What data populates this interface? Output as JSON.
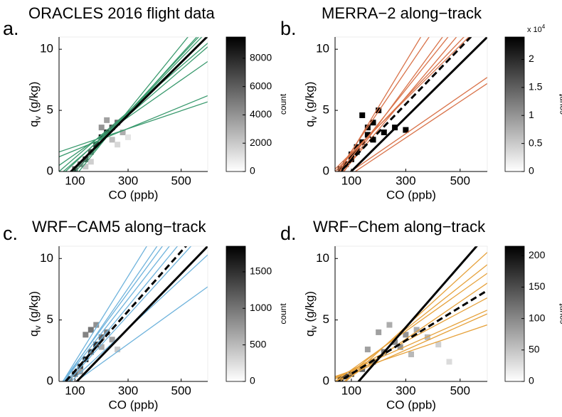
{
  "chart_data": [
    {
      "type": "heatmap",
      "panel_label": "a.",
      "title": "ORACLES 2016 flight data",
      "xlabel": "CO (ppb)",
      "ylabel": {
        "text": "q",
        "subscript": "v",
        "unit": "(g/kg)"
      },
      "xlim": [
        40,
        600
      ],
      "ylim": [
        0,
        11
      ],
      "xticks": [
        100,
        300,
        500
      ],
      "yticks": [
        0,
        5,
        10
      ],
      "cells": {
        "x": [
          100,
          120,
          140,
          160,
          180,
          200,
          220,
          240,
          260,
          280,
          200,
          220,
          240,
          260,
          140,
          160,
          300
        ],
        "y": [
          0.2,
          0.6,
          1.0,
          1.6,
          2.2,
          2.8,
          3.2,
          3.6,
          4.0,
          3.2,
          3.6,
          4.2,
          2.6,
          2.2,
          0.4,
          0.8,
          2.8
        ],
        "count": [
          6000,
          5000,
          7000,
          6500,
          8000,
          9000,
          8500,
          7000,
          5500,
          3000,
          4000,
          3500,
          2500,
          1500,
          2000,
          1800,
          1000
        ]
      },
      "x": [
        40,
        600
      ],
      "lines": [
        {
          "color": "#3a9a6e",
          "style": "solid",
          "values": [
            -1,
            11.5
          ]
        },
        {
          "color": "#3a9a6e",
          "style": "solid",
          "values": [
            -0.5,
            11
          ]
        },
        {
          "color": "#3a9a6e",
          "style": "solid",
          "values": [
            -1.5,
            12
          ]
        },
        {
          "color": "#3a9a6e",
          "style": "solid",
          "values": [
            0,
            10.5
          ]
        },
        {
          "color": "#3a9a6e",
          "style": "solid",
          "values": [
            -0.3,
            10.2
          ]
        },
        {
          "color": "#3a9a6e",
          "style": "solid",
          "values": [
            0.5,
            9
          ]
        },
        {
          "color": "#3a9a6e",
          "style": "solid",
          "values": [
            1.2,
            6.2
          ]
        },
        {
          "color": "#3a9a6e",
          "style": "solid",
          "values": [
            1.6,
            5.7
          ]
        },
        {
          "color": "#3a9a6e",
          "style": "solid",
          "values": [
            -2,
            13
          ]
        },
        {
          "color": "#3a9a6e",
          "style": "solid",
          "values": [
            -1.2,
            11.8
          ]
        },
        {
          "color": "#000000",
          "style": "solid",
          "values": [
            -0.97,
            11.07
          ]
        }
      ],
      "colorbar": {
        "label": "count",
        "lim": [
          0,
          9500
        ],
        "ticks": [
          0,
          2000,
          4000,
          6000,
          8000
        ]
      }
    },
    {
      "type": "heatmap",
      "panel_label": "b.",
      "title": "MERRA−2 along−track",
      "xlabel": "CO (ppb)",
      "ylabel": {
        "text": "q",
        "subscript": "v",
        "unit": "(g/kg)"
      },
      "xlim": [
        40,
        600
      ],
      "ylim": [
        0,
        11
      ],
      "xticks": [
        100,
        300,
        500
      ],
      "yticks": [
        0,
        5,
        10
      ],
      "cells": {
        "x": [
          60,
          80,
          100,
          120,
          140,
          160,
          180,
          200,
          140,
          160,
          120,
          180,
          220,
          260,
          300,
          100
        ],
        "y": [
          0.2,
          0.6,
          1.0,
          1.6,
          2.4,
          3.0,
          4.0,
          5.0,
          4.6,
          3.6,
          2.0,
          2.6,
          3.2,
          3.6,
          3.4,
          1.4
        ],
        "count": [
          22000,
          15000,
          9000,
          8000,
          7000,
          6000,
          5000,
          4000,
          6500,
          5500,
          4000,
          3000,
          2500,
          2000,
          1500,
          3500
        ]
      },
      "x": [
        40,
        600
      ],
      "lines": [
        {
          "color": "#d9734a",
          "style": "solid",
          "values": [
            -0.5,
            15
          ]
        },
        {
          "color": "#d9734a",
          "style": "solid",
          "values": [
            -0.3,
            18
          ]
        },
        {
          "color": "#d9734a",
          "style": "solid",
          "values": [
            -0.8,
            14
          ]
        },
        {
          "color": "#d9734a",
          "style": "solid",
          "values": [
            0,
            13
          ]
        },
        {
          "color": "#d9734a",
          "style": "solid",
          "values": [
            -1,
            16
          ]
        },
        {
          "color": "#d9734a",
          "style": "solid",
          "values": [
            -0.6,
            20
          ]
        },
        {
          "color": "#d9734a",
          "style": "solid",
          "values": [
            0.2,
            12.5
          ]
        },
        {
          "color": "#d9734a",
          "style": "solid",
          "values": [
            -0.9,
            7.7
          ]
        },
        {
          "color": "#d9734a",
          "style": "solid",
          "values": [
            -1.1,
            7.2
          ]
        },
        {
          "color": "#000000",
          "style": "solid",
          "values": [
            -1.3,
            11
          ]
        },
        {
          "color": "#000000",
          "style": "dashed",
          "values": [
            -0.46,
            12.4
          ]
        }
      ],
      "colorbar": {
        "label": "count",
        "lim": [
          0,
          2.4
        ],
        "ticks": [
          0,
          0.5,
          1,
          1.5,
          2
        ],
        "multiplier": {
          "text": "x 10",
          "exponent": "4"
        }
      }
    },
    {
      "type": "heatmap",
      "panel_label": "c.",
      "title": "WRF−CAM5 along−track",
      "xlabel": "CO (ppb)",
      "ylabel": {
        "text": "q",
        "subscript": "v",
        "unit": "(g/kg)"
      },
      "xlim": [
        40,
        600
      ],
      "ylim": [
        0,
        11
      ],
      "xticks": [
        100,
        300,
        500
      ],
      "yticks": [
        0,
        5,
        10
      ],
      "cells": {
        "x": [
          80,
          100,
          120,
          140,
          160,
          180,
          200,
          220,
          240,
          160,
          180,
          200,
          140,
          120,
          260
        ],
        "y": [
          0.2,
          0.6,
          1.2,
          1.8,
          2.4,
          3.0,
          3.6,
          4.0,
          3.4,
          4.2,
          4.6,
          2.8,
          3.8,
          0.8,
          2.6
        ],
        "count": [
          900,
          1200,
          1400,
          1600,
          1300,
          1500,
          1100,
          900,
          700,
          1000,
          800,
          600,
          900,
          700,
          400
        ]
      },
      "x": [
        40,
        600
      ],
      "lines": [
        {
          "color": "#6fb3dc",
          "style": "solid",
          "values": [
            -0.5,
            19
          ]
        },
        {
          "color": "#6fb3dc",
          "style": "solid",
          "values": [
            -0.6,
            17
          ]
        },
        {
          "color": "#6fb3dc",
          "style": "solid",
          "values": [
            -0.4,
            16
          ]
        },
        {
          "color": "#6fb3dc",
          "style": "solid",
          "values": [
            -0.7,
            14
          ]
        },
        {
          "color": "#6fb3dc",
          "style": "solid",
          "values": [
            -0.8,
            12.5
          ]
        },
        {
          "color": "#6fb3dc",
          "style": "solid",
          "values": [
            -0.9,
            10.3
          ]
        },
        {
          "color": "#6fb3dc",
          "style": "solid",
          "values": [
            -1,
            7.7
          ]
        },
        {
          "color": "#6fb3dc",
          "style": "solid",
          "values": [
            -0.5,
            15
          ]
        },
        {
          "color": "#000000",
          "style": "solid",
          "values": [
            -1.5,
            11
          ]
        },
        {
          "color": "#000000",
          "style": "dashed",
          "values": [
            -0.6,
            13
          ]
        }
      ],
      "colorbar": {
        "label": "count",
        "lim": [
          0,
          1850
        ],
        "ticks": [
          0,
          500,
          1000,
          1500
        ]
      }
    },
    {
      "type": "heatmap",
      "panel_label": "d.",
      "title": "WRF−Chem along−track",
      "xlabel": "CO (ppb)",
      "ylabel": {
        "text": "q",
        "subscript": "v",
        "unit": "(g/kg)"
      },
      "xlim": [
        40,
        600
      ],
      "ylim": [
        0,
        11
      ],
      "xticks": [
        100,
        300,
        500
      ],
      "yticks": [
        0,
        5,
        10
      ],
      "cells": {
        "x": [
          60,
          80,
          100,
          140,
          180,
          220,
          260,
          300,
          340,
          380,
          200,
          240,
          280,
          320,
          160,
          420,
          460
        ],
        "y": [
          0.2,
          0.4,
          0.6,
          1.0,
          1.6,
          2.4,
          3.2,
          3.8,
          4.2,
          3.6,
          4.0,
          4.6,
          2.8,
          2.2,
          2.6,
          3.0,
          1.6
        ],
        "count": [
          180,
          160,
          150,
          130,
          120,
          110,
          100,
          90,
          70,
          60,
          80,
          70,
          90,
          60,
          80,
          40,
          30
        ]
      },
      "x": [
        40,
        600
      ],
      "lines": [
        {
          "color": "#e6a23c",
          "style": "solid",
          "values": [
            -0.3,
            9.5
          ]
        },
        {
          "color": "#e6a23c",
          "style": "solid",
          "values": [
            0,
            8.8
          ]
        },
        {
          "color": "#e6a23c",
          "style": "solid",
          "values": [
            -0.5,
            8
          ]
        },
        {
          "color": "#e6a23c",
          "style": "solid",
          "values": [
            0.2,
            6.8
          ]
        },
        {
          "color": "#e6a23c",
          "style": "solid",
          "values": [
            0.3,
            5.8
          ]
        },
        {
          "color": "#e6a23c",
          "style": "solid",
          "values": [
            0.4,
            4.6
          ]
        },
        {
          "color": "#e6a23c",
          "style": "solid",
          "values": [
            -0.8,
            10.5
          ]
        },
        {
          "color": "#e6a23c",
          "style": "solid",
          "values": [
            0,
            5.5
          ]
        },
        {
          "color": "#000000",
          "style": "solid",
          "values": [
            -2.2,
            12
          ]
        },
        {
          "color": "#000000",
          "style": "dashed",
          "values": [
            -0.2,
            7.4
          ]
        }
      ],
      "colorbar": {
        "label": "count",
        "lim": [
          0,
          215
        ],
        "ticks": [
          0,
          50,
          100,
          150,
          200
        ]
      }
    }
  ]
}
